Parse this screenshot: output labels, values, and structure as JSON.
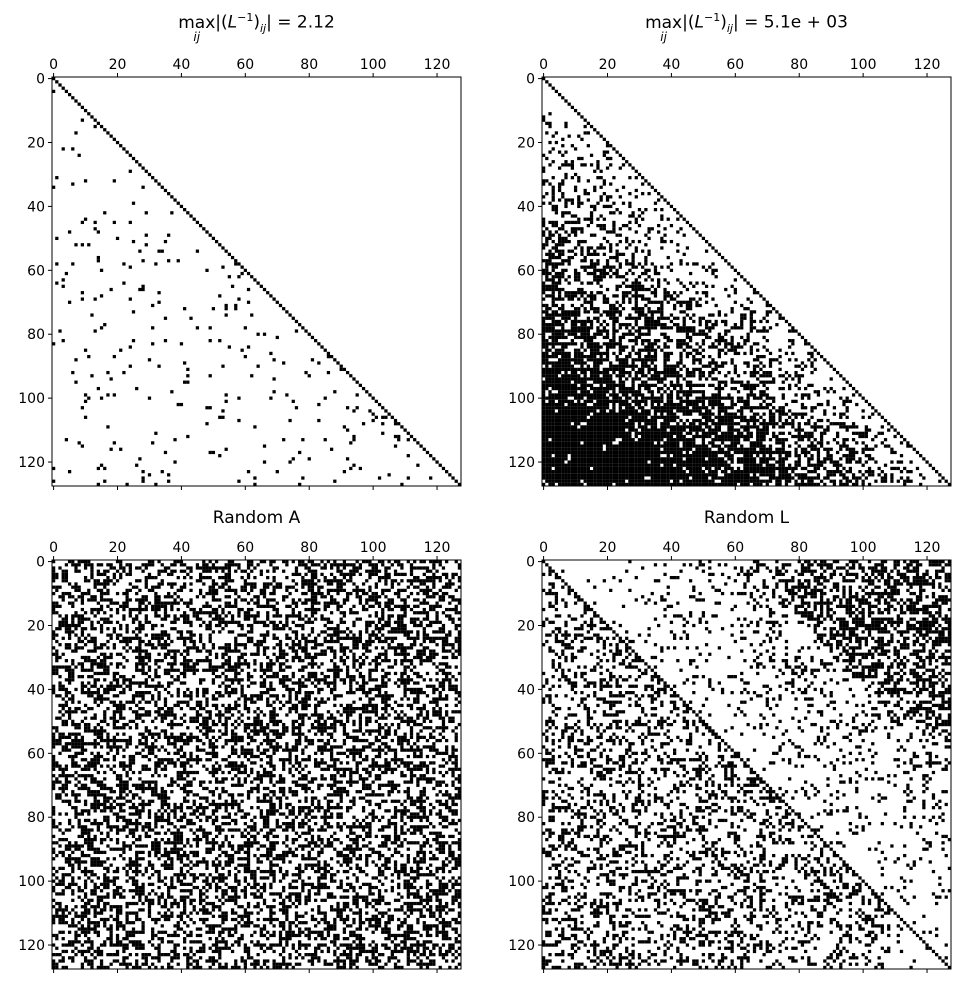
{
  "chart_data": [
    {
      "type": "heatmap",
      "subtype": "spy",
      "matrix_size": 128,
      "pattern": "diagonal plus sparse lower triangle",
      "density": 0.04,
      "title": {
        "op": "max",
        "op_sub": "ij",
        "pre": "|(",
        "var": "L",
        "sup": "−1",
        "mid": ")",
        "sub": "ij",
        "post": "| = 2.12"
      },
      "xticks": [
        0,
        20,
        40,
        60,
        80,
        100,
        120
      ],
      "yticks": [
        0,
        20,
        40,
        60,
        80,
        100,
        120
      ]
    },
    {
      "type": "heatmap",
      "subtype": "spy",
      "matrix_size": 128,
      "pattern": "diagonal plus lower triangle, dense far from diagonal",
      "density": 0.6,
      "title": {
        "op": "max",
        "op_sub": "ij",
        "pre": "|(",
        "var": "L",
        "sup": "−1",
        "mid": ")",
        "sub": "ij",
        "post": "| = 5.1e + 03"
      },
      "xticks": [
        0,
        20,
        40,
        60,
        80,
        100,
        120
      ],
      "yticks": [
        0,
        20,
        40,
        60,
        80,
        100,
        120
      ]
    },
    {
      "type": "heatmap",
      "subtype": "spy",
      "matrix_size": 128,
      "pattern": "uniform random",
      "density": 0.45,
      "title": {
        "plain": "Random A"
      },
      "xticks": [
        0,
        20,
        40,
        60,
        80,
        100,
        120
      ],
      "yticks": [
        0,
        20,
        40,
        60,
        80,
        100,
        120
      ]
    },
    {
      "type": "heatmap",
      "subtype": "spy",
      "matrix_size": 128,
      "pattern": "diagonal plus random lower triangle and upper-right block",
      "density": 0.3,
      "title": {
        "plain": "Random L"
      },
      "xticks": [
        0,
        20,
        40,
        60,
        80,
        100,
        120
      ],
      "yticks": [
        0,
        20,
        40,
        60,
        80,
        100,
        120
      ]
    }
  ],
  "colors": {
    "nonzero": "#000000",
    "background": "#ffffff"
  }
}
